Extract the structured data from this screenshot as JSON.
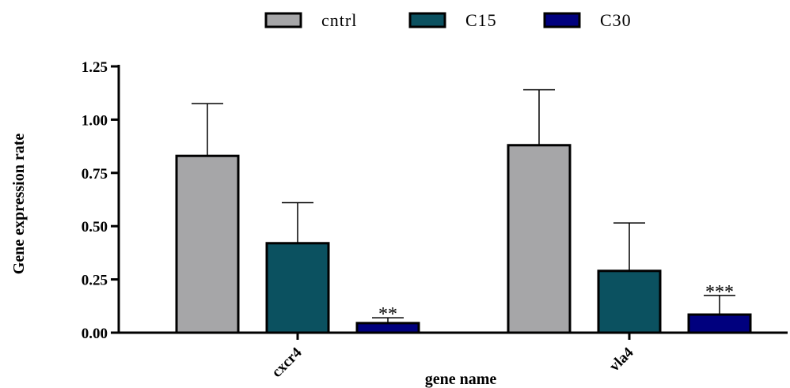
{
  "chart_data": {
    "type": "bar",
    "title": "",
    "xlabel": "gene name",
    "ylabel": "Gene expression rate",
    "categories": [
      "cxcr4",
      "vla4"
    ],
    "ylim": [
      0,
      1.25
    ],
    "yticks": [
      "0.00",
      "0.25",
      "0.50",
      "0.75",
      "1.00",
      "1.25"
    ],
    "legend_position": "top",
    "series": [
      {
        "name": "cntrl",
        "color": "#a6a6a8",
        "values": [
          0.83,
          0.88
        ],
        "errors": [
          0.245,
          0.26
        ]
      },
      {
        "name": "C15",
        "color": "#0b5160",
        "values": [
          0.42,
          0.29
        ],
        "errors": [
          0.19,
          0.225
        ]
      },
      {
        "name": "C30",
        "color": "#00007e",
        "values": [
          0.045,
          0.085
        ],
        "errors": [
          0.025,
          0.09
        ]
      }
    ],
    "annotations": [
      {
        "category": "cxcr4",
        "series": "C30",
        "text": "**"
      },
      {
        "category": "vla4",
        "series": "C30",
        "text": "***"
      }
    ]
  }
}
